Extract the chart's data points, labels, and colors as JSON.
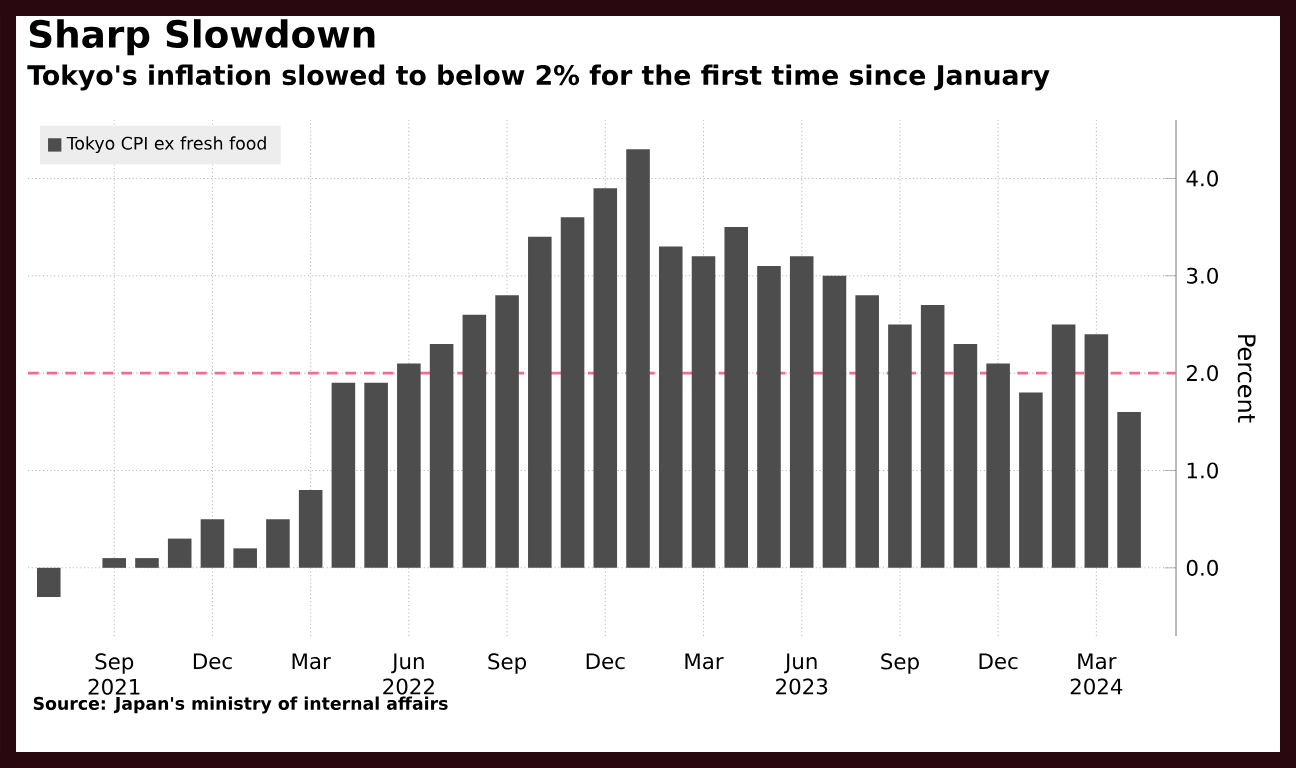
{
  "chart_data": {
    "type": "bar",
    "title": "Sharp Slowdown",
    "subtitle": "Tokyo's inflation slowed to below 2% for the first time since January",
    "ylabel": "Percent",
    "x": [
      "2021-07",
      "2021-08",
      "2021-09",
      "2021-10",
      "2021-11",
      "2021-12",
      "2022-01",
      "2022-02",
      "2022-03",
      "2022-04",
      "2022-05",
      "2022-06",
      "2022-07",
      "2022-08",
      "2022-09",
      "2022-10",
      "2022-11",
      "2022-12",
      "2023-01",
      "2023-02",
      "2023-03",
      "2023-04",
      "2023-05",
      "2023-06",
      "2023-07",
      "2023-08",
      "2023-09",
      "2023-10",
      "2023-11",
      "2023-12",
      "2024-01",
      "2024-02",
      "2024-03",
      "2024-04"
    ],
    "series": [
      {
        "name": "Tokyo CPI ex fresh food",
        "color": "#4d4d4d",
        "values": [
          -0.3,
          0.0,
          0.1,
          0.1,
          0.3,
          0.5,
          0.2,
          0.5,
          0.8,
          1.9,
          1.9,
          2.1,
          2.3,
          2.6,
          2.8,
          3.4,
          3.6,
          3.9,
          4.3,
          3.3,
          3.2,
          3.5,
          3.1,
          3.2,
          3.0,
          2.8,
          2.5,
          2.7,
          2.3,
          2.1,
          1.8,
          2.5,
          2.4,
          1.6
        ]
      }
    ],
    "xlim": [
      "2021-06-12",
      "2024-05-14"
    ],
    "ylim": [
      -0.7,
      4.6
    ],
    "xticks": [
      {
        "value": "2021-09",
        "label": "Sep 2021"
      },
      {
        "value": "2021-12",
        "label": "Dec"
      },
      {
        "value": "2022-03",
        "label": "Mar"
      },
      {
        "value": "2022-06",
        "label": "Jun 2022"
      },
      {
        "value": "2022-09",
        "label": "Sep"
      },
      {
        "value": "2022-12",
        "label": "Dec"
      },
      {
        "value": "2023-03",
        "label": "Mar"
      },
      {
        "value": "2023-06",
        "label": "Jun 2023"
      },
      {
        "value": "2023-09",
        "label": "Sep"
      },
      {
        "value": "2023-12",
        "label": "Dec"
      },
      {
        "value": "2024-03",
        "label": "Mar 2024"
      }
    ],
    "yticks": [
      {
        "value": 0,
        "label": "0.0"
      },
      {
        "value": 1,
        "label": "1.0"
      },
      {
        "value": 2,
        "label": "2.0"
      },
      {
        "value": 3,
        "label": "3.0"
      },
      {
        "value": 4,
        "label": "4.0"
      }
    ],
    "grid": true,
    "legend": "top left",
    "ref_lines": [
      {
        "axis": "y",
        "value": 2,
        "color": "#f06e8c",
        "line_style": "dashed"
      }
    ],
    "annotations": [
      "Source: Japan's ministry of internal affairs"
    ]
  }
}
